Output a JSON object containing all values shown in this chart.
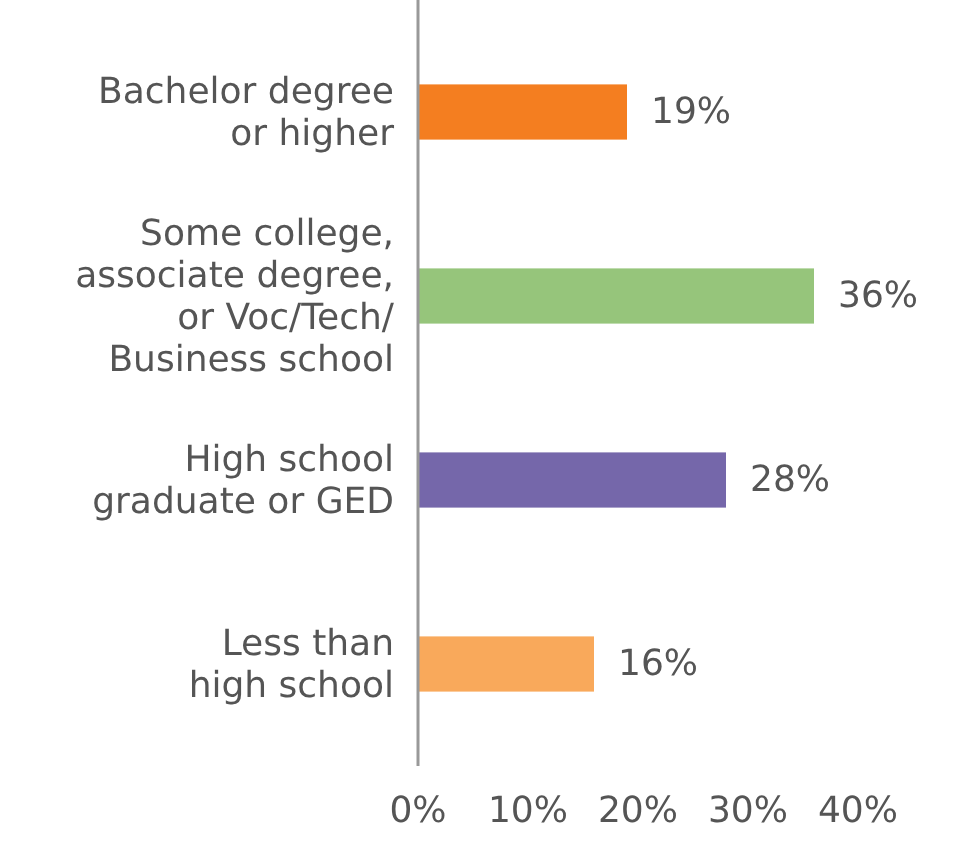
{
  "chart_data": {
    "type": "bar",
    "orientation": "horizontal",
    "categories": [
      "Bachelor degree\nor higher",
      "Some college,\nassociate degree,\nor Voc/Tech/\nBusiness school",
      "High school\ngraduate or GED",
      "Less than\nhigh school"
    ],
    "values": [
      19,
      36,
      28,
      16
    ],
    "colors": [
      "#f47e20",
      "#96c57b",
      "#7567aa",
      "#f9a95b"
    ],
    "value_labels": [
      "19%",
      "36%",
      "28%",
      "16%"
    ],
    "xlim": [
      0,
      40
    ],
    "xticks": [
      {
        "value": 0,
        "label": "0%"
      },
      {
        "value": 10,
        "label": "10%"
      },
      {
        "value": 20,
        "label": "20%"
      },
      {
        "value": 30,
        "label": "30%"
      },
      {
        "value": 40,
        "label": "40%"
      }
    ],
    "grid": false
  }
}
